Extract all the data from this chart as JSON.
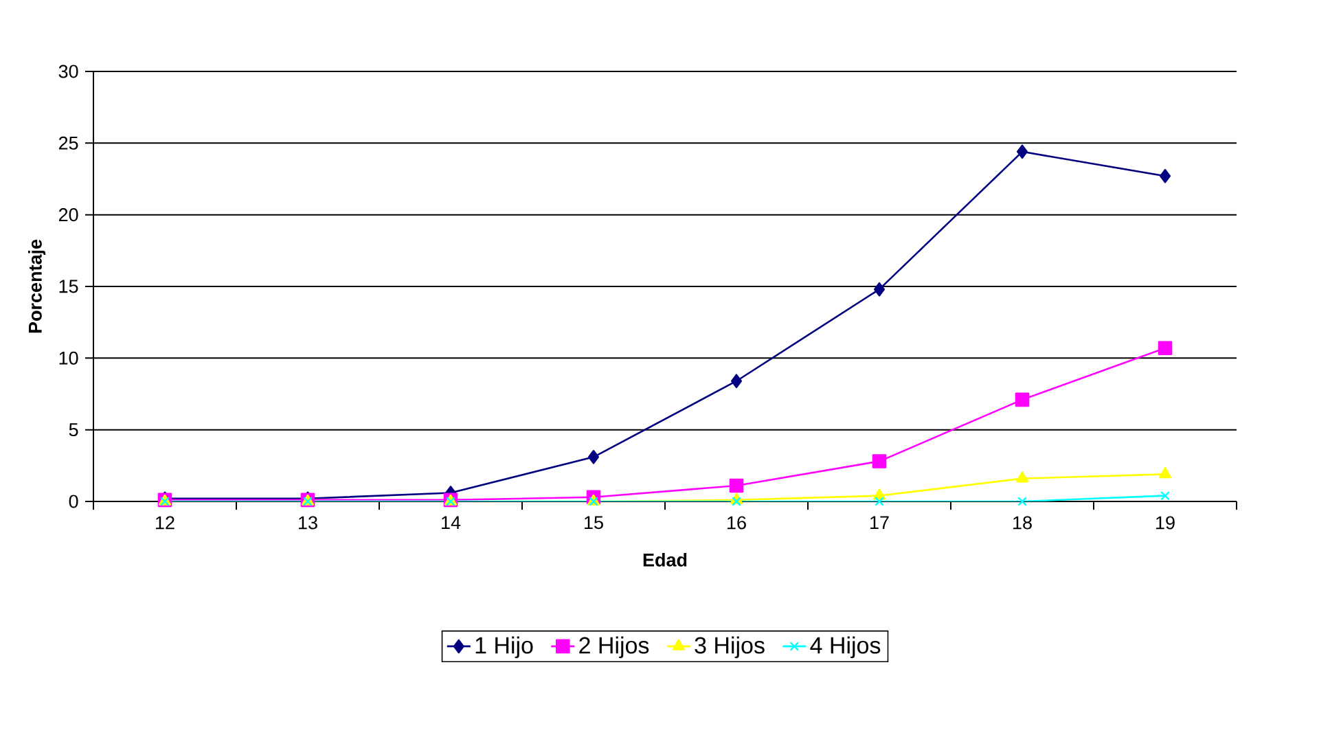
{
  "chart_data": {
    "type": "line",
    "xlabel": "Edad",
    "ylabel": "Porcentaje",
    "categories": [
      "12",
      "13",
      "14",
      "15",
      "16",
      "17",
      "18",
      "19"
    ],
    "series": [
      {
        "name": "1 Hijo",
        "color": "#000080",
        "marker": "diamond",
        "values": [
          0.2,
          0.2,
          0.6,
          3.1,
          8.4,
          14.8,
          24.4,
          22.7
        ]
      },
      {
        "name": "2 Hijos",
        "color": "#ff00ff",
        "marker": "square",
        "values": [
          0.1,
          0.1,
          0.1,
          0.3,
          1.1,
          2.8,
          7.1,
          10.7
        ]
      },
      {
        "name": "3 Hijos",
        "color": "#ffff00",
        "marker": "triangle",
        "values": [
          0,
          0,
          0,
          0,
          0.1,
          0.4,
          1.6,
          1.9
        ]
      },
      {
        "name": "4 Hijos",
        "color": "#00ffff",
        "marker": "cross",
        "values": [
          0,
          0,
          0,
          0,
          0,
          0,
          0,
          0.4
        ]
      }
    ],
    "ylim": [
      0,
      30
    ],
    "yticks": [
      0,
      5,
      10,
      15,
      20,
      25,
      30
    ],
    "grid": "y",
    "legend": "bottom"
  }
}
